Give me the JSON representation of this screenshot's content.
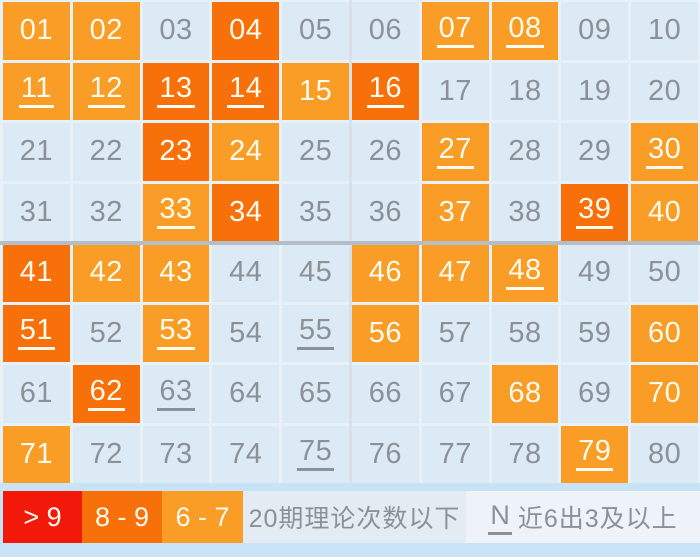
{
  "colors": {
    "page-bg": "#C8E2F6",
    "gap": "#E9F1F8",
    "cold": "#DCEAF6",
    "hot1": "#F99D27",
    "hot2": "#F8700A",
    "red": "#F2190A",
    "cold-text": "#8B9196",
    "hot-text": "#FFFBEF",
    "legend-cold1": "#E3ECF3",
    "legend-cold2": "#EDF3F8",
    "divider-v": "#D8E1E9",
    "divider-h": "#B3BEC8"
  },
  "grid": {
    "columns": 10,
    "rows": 8,
    "cells": [
      {
        "num": "01",
        "level": "hot1",
        "underlined": false
      },
      {
        "num": "02",
        "level": "hot1",
        "underlined": false
      },
      {
        "num": "03",
        "level": "cold",
        "underlined": false
      },
      {
        "num": "04",
        "level": "hot2",
        "underlined": false
      },
      {
        "num": "05",
        "level": "cold",
        "underlined": false
      },
      {
        "num": "06",
        "level": "cold",
        "underlined": false
      },
      {
        "num": "07",
        "level": "hot1",
        "underlined": true
      },
      {
        "num": "08",
        "level": "hot1",
        "underlined": true
      },
      {
        "num": "09",
        "level": "cold",
        "underlined": false
      },
      {
        "num": "10",
        "level": "cold",
        "underlined": false
      },
      {
        "num": "11",
        "level": "hot1",
        "underlined": true
      },
      {
        "num": "12",
        "level": "hot1",
        "underlined": true
      },
      {
        "num": "13",
        "level": "hot2",
        "underlined": true
      },
      {
        "num": "14",
        "level": "hot2",
        "underlined": true
      },
      {
        "num": "15",
        "level": "hot1",
        "underlined": false
      },
      {
        "num": "16",
        "level": "hot2",
        "underlined": true
      },
      {
        "num": "17",
        "level": "cold",
        "underlined": false
      },
      {
        "num": "18",
        "level": "cold",
        "underlined": false
      },
      {
        "num": "19",
        "level": "cold",
        "underlined": false
      },
      {
        "num": "20",
        "level": "cold",
        "underlined": false
      },
      {
        "num": "21",
        "level": "cold",
        "underlined": false
      },
      {
        "num": "22",
        "level": "cold",
        "underlined": false
      },
      {
        "num": "23",
        "level": "hot2",
        "underlined": false
      },
      {
        "num": "24",
        "level": "hot1",
        "underlined": false
      },
      {
        "num": "25",
        "level": "cold",
        "underlined": false
      },
      {
        "num": "26",
        "level": "cold",
        "underlined": false
      },
      {
        "num": "27",
        "level": "hot1",
        "underlined": true
      },
      {
        "num": "28",
        "level": "cold",
        "underlined": false
      },
      {
        "num": "29",
        "level": "cold",
        "underlined": false
      },
      {
        "num": "30",
        "level": "hot1",
        "underlined": true
      },
      {
        "num": "31",
        "level": "cold",
        "underlined": false
      },
      {
        "num": "32",
        "level": "cold",
        "underlined": false
      },
      {
        "num": "33",
        "level": "hot1",
        "underlined": true
      },
      {
        "num": "34",
        "level": "hot2",
        "underlined": false
      },
      {
        "num": "35",
        "level": "cold",
        "underlined": false
      },
      {
        "num": "36",
        "level": "cold",
        "underlined": false
      },
      {
        "num": "37",
        "level": "hot1",
        "underlined": false
      },
      {
        "num": "38",
        "level": "cold",
        "underlined": false
      },
      {
        "num": "39",
        "level": "hot2",
        "underlined": true
      },
      {
        "num": "40",
        "level": "hot1",
        "underlined": false
      },
      {
        "num": "41",
        "level": "hot2",
        "underlined": false
      },
      {
        "num": "42",
        "level": "hot1",
        "underlined": false
      },
      {
        "num": "43",
        "level": "hot1",
        "underlined": false
      },
      {
        "num": "44",
        "level": "cold",
        "underlined": false
      },
      {
        "num": "45",
        "level": "cold",
        "underlined": false
      },
      {
        "num": "46",
        "level": "hot1",
        "underlined": false
      },
      {
        "num": "47",
        "level": "hot1",
        "underlined": false
      },
      {
        "num": "48",
        "level": "hot1",
        "underlined": true
      },
      {
        "num": "49",
        "level": "cold",
        "underlined": false
      },
      {
        "num": "50",
        "level": "cold",
        "underlined": false
      },
      {
        "num": "51",
        "level": "hot2",
        "underlined": true
      },
      {
        "num": "52",
        "level": "cold",
        "underlined": false
      },
      {
        "num": "53",
        "level": "hot1",
        "underlined": true
      },
      {
        "num": "54",
        "level": "cold",
        "underlined": false
      },
      {
        "num": "55",
        "level": "cold",
        "underlined": true
      },
      {
        "num": "56",
        "level": "hot1",
        "underlined": false
      },
      {
        "num": "57",
        "level": "cold",
        "underlined": false
      },
      {
        "num": "58",
        "level": "cold",
        "underlined": false
      },
      {
        "num": "59",
        "level": "cold",
        "underlined": false
      },
      {
        "num": "60",
        "level": "hot1",
        "underlined": false
      },
      {
        "num": "61",
        "level": "cold",
        "underlined": false
      },
      {
        "num": "62",
        "level": "hot2",
        "underlined": true
      },
      {
        "num": "63",
        "level": "cold",
        "underlined": true
      },
      {
        "num": "64",
        "level": "cold",
        "underlined": false
      },
      {
        "num": "65",
        "level": "cold",
        "underlined": false
      },
      {
        "num": "66",
        "level": "cold",
        "underlined": false
      },
      {
        "num": "67",
        "level": "cold",
        "underlined": false
      },
      {
        "num": "68",
        "level": "hot1",
        "underlined": false
      },
      {
        "num": "69",
        "level": "cold",
        "underlined": false
      },
      {
        "num": "70",
        "level": "hot1",
        "underlined": false
      },
      {
        "num": "71",
        "level": "hot1",
        "underlined": false
      },
      {
        "num": "72",
        "level": "cold",
        "underlined": false
      },
      {
        "num": "73",
        "level": "cold",
        "underlined": false
      },
      {
        "num": "74",
        "level": "cold",
        "underlined": false
      },
      {
        "num": "75",
        "level": "cold",
        "underlined": true
      },
      {
        "num": "76",
        "level": "cold",
        "underlined": false
      },
      {
        "num": "77",
        "level": "cold",
        "underlined": false
      },
      {
        "num": "78",
        "level": "cold",
        "underlined": false
      },
      {
        "num": "79",
        "level": "hot1",
        "underlined": true
      },
      {
        "num": "80",
        "level": "cold",
        "underlined": false
      }
    ]
  },
  "legend": {
    "items": [
      {
        "id": "gt9",
        "label": "> 9",
        "type": "red",
        "cn": false,
        "prefix": ""
      },
      {
        "id": "8-9",
        "label": "8 - 9",
        "type": "hot2",
        "cn": false,
        "prefix": ""
      },
      {
        "id": "6-7",
        "label": "6 - 7",
        "type": "hot1",
        "cn": false,
        "prefix": ""
      },
      {
        "id": "below-theory",
        "label": "20期理论次数以下",
        "type": "cold1",
        "cn": true,
        "prefix": ""
      },
      {
        "id": "recent",
        "label": "近6出3及以上",
        "type": "cold2",
        "cn": true,
        "prefix": "N"
      }
    ]
  }
}
